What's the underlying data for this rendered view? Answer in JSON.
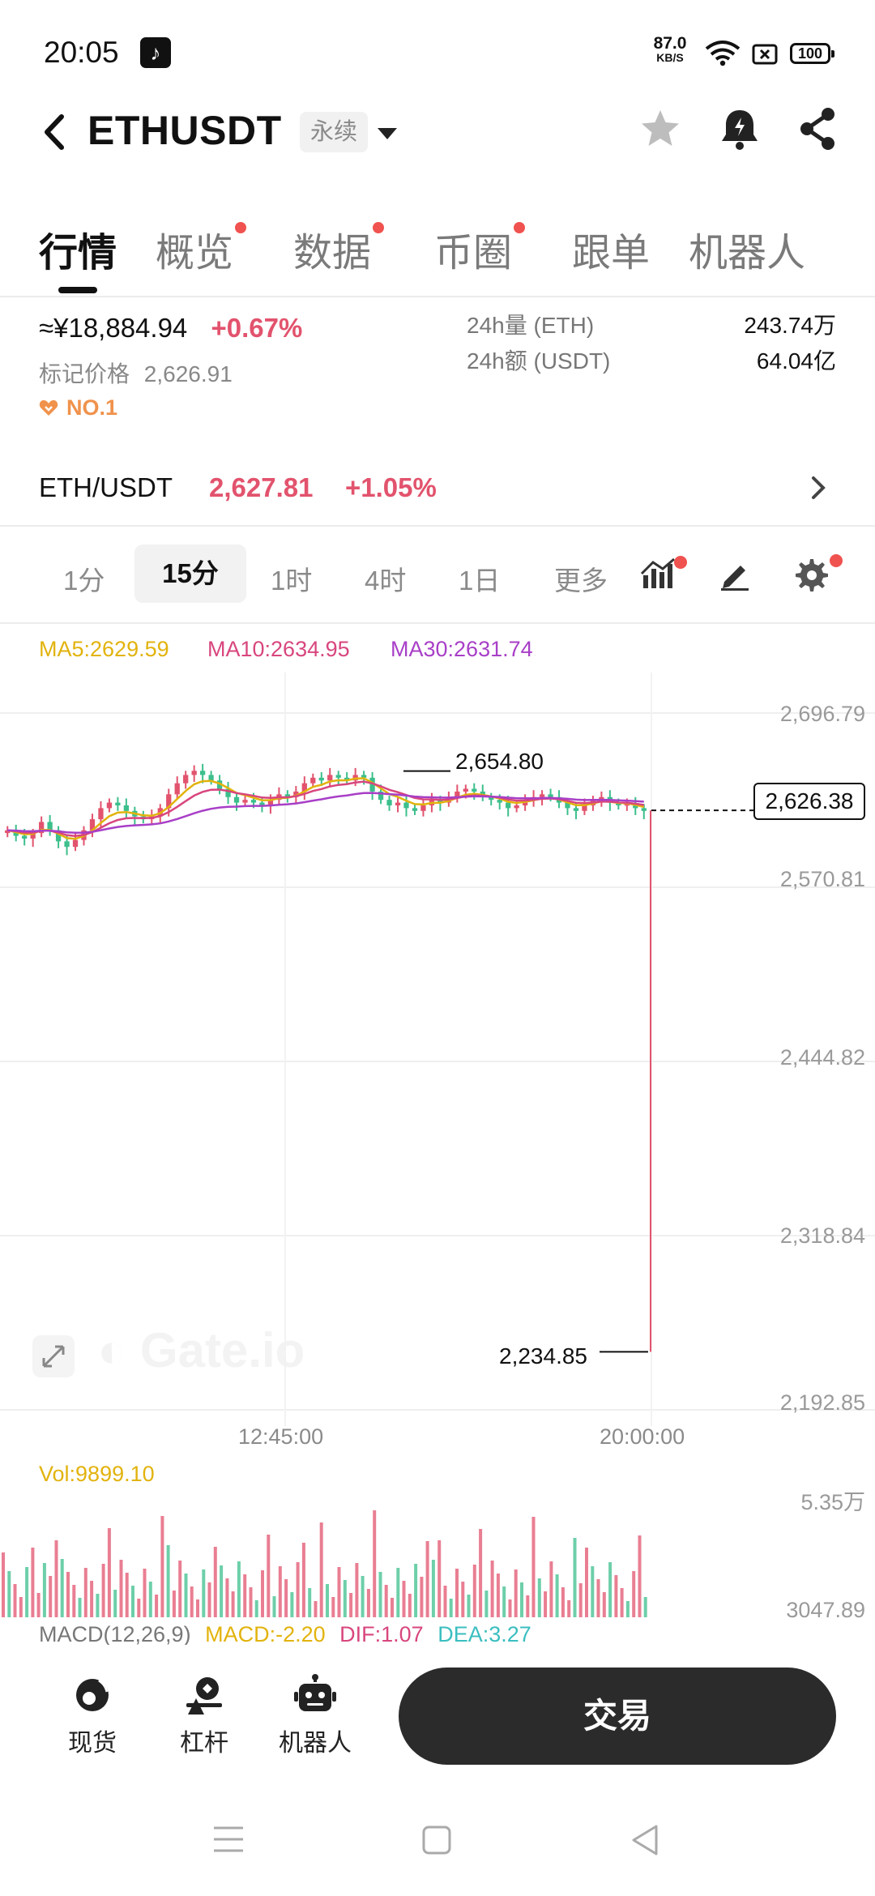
{
  "status_bar": {
    "time": "20:05",
    "net_speed": "87.0",
    "net_unit": "KB/S",
    "battery": "100"
  },
  "header": {
    "title": "ETHUSDT",
    "contract_type": "永续"
  },
  "tabs": [
    {
      "label": "行情",
      "active": true,
      "dot": false
    },
    {
      "label": "概览",
      "active": false,
      "dot": true
    },
    {
      "label": "数据",
      "active": false,
      "dot": true
    },
    {
      "label": "币圈",
      "active": false,
      "dot": true
    },
    {
      "label": "跟单",
      "active": false,
      "dot": false
    },
    {
      "label": "机器人",
      "active": false,
      "dot": false
    }
  ],
  "summary": {
    "cny_price": "≈¥18,884.94",
    "cny_change": "+0.67%",
    "mark_label": "标记价格",
    "mark_price": "2,626.91",
    "rank": "NO.1",
    "stats": [
      {
        "label": "24h量 (ETH)",
        "value": "243.74万"
      },
      {
        "label": "24h额 (USDT)",
        "value": "64.04亿"
      }
    ]
  },
  "spot_pair": {
    "pair": "ETH/USDT",
    "price": "2,627.81",
    "change": "+1.05%"
  },
  "intervals": [
    "1分",
    "15分",
    "1时",
    "4时",
    "1日",
    "更多"
  ],
  "selected_interval": "15分",
  "ma": {
    "ma5": "MA5:2629.59",
    "ma10": "MA10:2634.95",
    "ma30": "MA30:2631.74"
  },
  "colors": {
    "up": "#e2536d",
    "down": "#3cbf8c",
    "ma5": "#e2b30d",
    "ma10": "#d8467e",
    "ma30": "#a83fc7"
  },
  "chart_data": {
    "type": "candlestick",
    "y_ticks": [
      "2,696.79",
      "2,570.81",
      "2,444.82",
      "2,318.84",
      "2,192.85"
    ],
    "ylim": [
      2192.85,
      2696.79
    ],
    "x_ticks": [
      "12:45:00",
      "20:00:00"
    ],
    "last_price": "2,626.38",
    "high_annotation": "2,654.80",
    "low_annotation": "2,234.85",
    "close_series": [
      2612,
      2608,
      2606,
      2610,
      2618,
      2612,
      2604,
      2600,
      2605,
      2612,
      2620,
      2628,
      2632,
      2630,
      2626,
      2622,
      2620,
      2622,
      2628,
      2638,
      2646,
      2652,
      2655,
      2652,
      2648,
      2642,
      2636,
      2632,
      2634,
      2632,
      2630,
      2634,
      2638,
      2636,
      2640,
      2646,
      2650,
      2648,
      2652,
      2650,
      2648,
      2652,
      2650,
      2640,
      2634,
      2630,
      2632,
      2628,
      2626,
      2630,
      2634,
      2632,
      2636,
      2640,
      2642,
      2640,
      2636,
      2634,
      2632,
      2628,
      2630,
      2634,
      2636,
      2638,
      2636,
      2632,
      2628,
      2626,
      2630,
      2634,
      2636,
      2632,
      2630,
      2631,
      2628,
      2626
    ]
  },
  "volume": {
    "label": "Vol:9899.10",
    "y_ticks": [
      "5.35万",
      "3047.89"
    ]
  },
  "macd": {
    "params": "MACD(12,26,9)",
    "macd": "MACD:-2.20",
    "dif": "DIF:1.07",
    "dea": "DEA:3.27"
  },
  "bottom_nav": [
    {
      "label": "现货"
    },
    {
      "label": "杠杆"
    },
    {
      "label": "机器人"
    }
  ],
  "trade_button": "交易"
}
